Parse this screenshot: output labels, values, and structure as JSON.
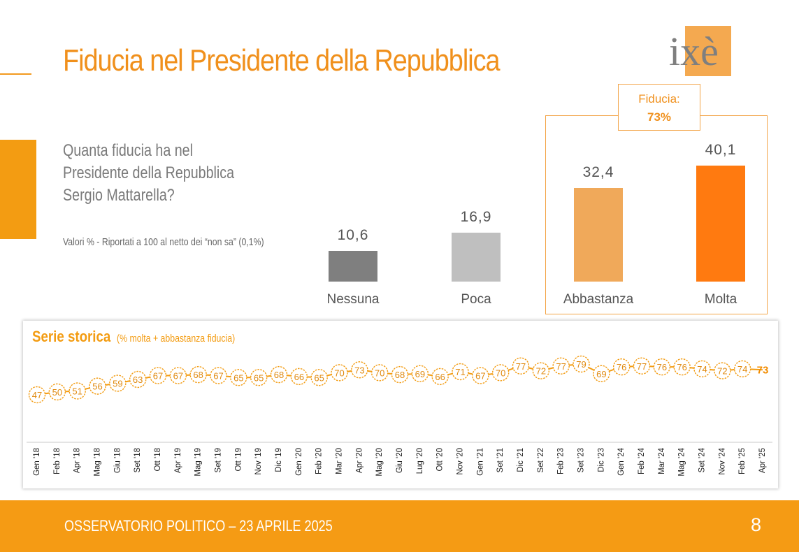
{
  "page": {
    "title": "Fiducia nel Presidente della Repubblica",
    "logo_text": "ixè",
    "question_lines": [
      "Quanta fiducia ha nel",
      "Presidente della Repubblica",
      "Sergio Mattarella?"
    ],
    "note": "Valori % - Riportati a 100 al netto dei “non sa” (0,1%)",
    "fiducia_label": "Fiducia:",
    "fiducia_value": "73%",
    "footer_text": "OSSERVATORIO POLITICO – 23 APRILE 2025",
    "page_number": "8"
  },
  "colors": {
    "orange": "#F39C12",
    "title_orange": "#F0901C",
    "logo_orange": "#F4A950",
    "logo_gray": "#7f7f7f"
  },
  "chart_data": [
    {
      "type": "bar",
      "categories": [
        "Nessuna",
        "Poca",
        "Abbastanza",
        "Molta"
      ],
      "values": [
        10.6,
        16.9,
        32.4,
        40.1
      ],
      "value_labels": [
        "10,6",
        "16,9",
        "32,4",
        "40,1"
      ],
      "colors": [
        "#7f7f7f",
        "#bfbfbf",
        "#F0A95A",
        "#FF7A10"
      ],
      "title": "",
      "xlabel": "",
      "ylabel": "",
      "ylim": [
        0,
        40.1
      ]
    },
    {
      "type": "line",
      "title": "Serie storica",
      "subtitle": "(% molta + abbastanza fiducia)",
      "x": [
        "Gen '18",
        "Feb '18",
        "Apr '18",
        "Mag '18",
        "Giu '18",
        "Set '18",
        "Ott '18",
        "Apr '19",
        "Mag '19",
        "Set '19",
        "Ott '19",
        "Nov '19",
        "Dic '19",
        "Gen '20",
        "Feb '20",
        "Mar '20",
        "Apr '20",
        "Mag '20",
        "Giu '20",
        "Lug '20",
        "Ott '20",
        "Nov '20",
        "Gen '21",
        "Set '21",
        "Dic '21",
        "Set '22",
        "Feb '23",
        "Set '23",
        "Dic '23",
        "Gen '24",
        "Feb '24",
        "Mar '24",
        "Mag '24",
        "Set '24",
        "Nov '24",
        "Feb '25",
        "Apr '25"
      ],
      "values": [
        47,
        50,
        51,
        56,
        59,
        63,
        67,
        67,
        68,
        67,
        65,
        65,
        68,
        66,
        65,
        70,
        73,
        70,
        68,
        69,
        66,
        71,
        67,
        70,
        77,
        72,
        77,
        79,
        69,
        76,
        77,
        76,
        76,
        74,
        72,
        74,
        73
      ],
      "series_color": "#F39C12",
      "highlight_last": true,
      "ylim": [
        47,
        79
      ],
      "legend": "none",
      "grid": false
    }
  ]
}
